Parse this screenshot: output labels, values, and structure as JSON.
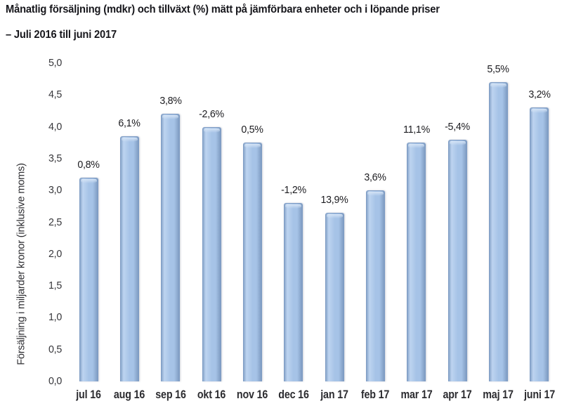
{
  "page": {
    "background": "#ffffff"
  },
  "chart_data": {
    "type": "bar",
    "title": "Månatlig försäljning (mdkr) och tillväxt (%) mätt på jämförbara enheter och i löpande priser",
    "subtitle": "– Juli 2016 till juni 2017",
    "ylabel": "Försäljning i miljarder kronor (inklusive moms)",
    "xlabel": "",
    "categories": [
      "jul 16",
      "aug 16",
      "sep 16",
      "okt 16",
      "nov 16",
      "dec 16",
      "jan 17",
      "feb 17",
      "mar 17",
      "apr 17",
      "maj 17",
      "juni 17"
    ],
    "values": [
      3.2,
      3.85,
      4.2,
      4.0,
      3.75,
      2.8,
      2.65,
      3.0,
      3.75,
      3.8,
      4.7,
      4.3
    ],
    "bar_labels": [
      "0,8%",
      "6,1%",
      "3,8%",
      "-2,6%",
      "0,5%",
      "-1,2%",
      "13,9%",
      "3,6%",
      "11,1%",
      "-5,4%",
      "5,5%",
      "3,2%"
    ],
    "ylim": [
      0,
      5
    ],
    "ytick_labels": [
      "0,0",
      "0,5",
      "1,0",
      "1,5",
      "2,0",
      "2,5",
      "3,0",
      "3,5",
      "4,0",
      "4,5",
      "5,0"
    ],
    "grid": false,
    "legend": "none",
    "colors": {
      "bar_fill_left": "#8aa7cc",
      "bar_fill_light": "#bdd4f0",
      "bar_fill_mid": "#a6c3e7",
      "bar_fill_right": "#7f9cc2",
      "bar_highlight": "#d4e3f5",
      "bar_edge": "#7e9cc4",
      "text": "#1f1f23"
    }
  }
}
